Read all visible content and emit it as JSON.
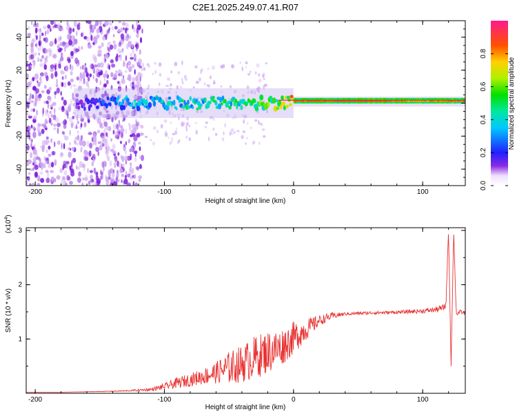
{
  "title": "C2E1.2025.249.07.41.R07",
  "colors": {
    "top_line": "#ff1a1a",
    "snr_line": "#e83030",
    "scatter_dense": "#7a1ad8",
    "scatter_light": "#cda6f2"
  },
  "chart_data": [
    {
      "type": "heatmap",
      "name": "spectrogram",
      "xlabel": "Height of straight line (km)",
      "ylabel": "Frequency (Hz)",
      "xlim": [
        -207,
        133
      ],
      "ylim": [
        -50,
        50
      ],
      "xticks": [
        -200,
        -100,
        0,
        100
      ],
      "xtick_labels": [
        "-200",
        "-100",
        "0",
        "100"
      ],
      "yticks": [
        -40,
        -20,
        0,
        20,
        40
      ],
      "ytick_labels": [
        "-40",
        "-20",
        "0",
        "20",
        "40"
      ],
      "colorbar": {
        "label": "Normalized spectral amplitude",
        "range": [
          0,
          1
        ],
        "ticks": [
          0.0,
          0.2,
          0.4,
          0.6,
          0.8
        ],
        "tick_labels": [
          "0.0",
          "0.2",
          "0.4",
          "0.6",
          "0.8"
        ]
      },
      "ridge": [
        {
          "x": -160,
          "freq": 0,
          "amp": 0.2
        },
        {
          "x": -120,
          "freq": 0,
          "amp": 0.4
        },
        {
          "x": -80,
          "freq": 0,
          "amp": 0.45
        },
        {
          "x": -40,
          "freq": 0,
          "amp": 0.5
        },
        {
          "x": -10,
          "freq": 0,
          "amp": 0.7
        },
        {
          "x": 0,
          "freq": 1,
          "amp": 0.9
        },
        {
          "x": 60,
          "freq": 1,
          "amp": 1.0
        },
        {
          "x": 90,
          "freq": 1,
          "amp": 0.85
        },
        {
          "x": 120,
          "freq": 1,
          "amp": 0.9
        },
        {
          "x": 133,
          "freq": 1,
          "amp": 0.9
        }
      ]
    },
    {
      "type": "line",
      "name": "snr",
      "xlabel": "Height of straight line (km)",
      "ylabel": "SNR (10 * v/v)",
      "yscale_label": "(x10",
      "yscale_exp": "4",
      "yscale_close": ")",
      "xlim": [
        -207,
        133
      ],
      "ylim": [
        0,
        3.05
      ],
      "xticks": [
        -200,
        -100,
        0,
        100
      ],
      "xtick_labels": [
        "-200",
        "-100",
        "0",
        "100"
      ],
      "yticks": [
        1,
        2,
        3
      ],
      "ytick_labels": [
        "1",
        "2",
        "3"
      ],
      "series": [
        {
          "name": "SNR",
          "x": [
            -207,
            -180,
            -150,
            -130,
            -110,
            -100,
            -90,
            -80,
            -70,
            -60,
            -50,
            -40,
            -30,
            -20,
            -10,
            0,
            10,
            20,
            30,
            40,
            60,
            80,
            100,
            110,
            116,
            118,
            120,
            122,
            124,
            126,
            130,
            133
          ],
          "y": [
            0.02,
            0.02,
            0.03,
            0.04,
            0.06,
            0.1,
            0.15,
            0.2,
            0.25,
            0.3,
            0.35,
            0.4,
            0.5,
            0.6,
            0.7,
            0.9,
            1.1,
            1.3,
            1.4,
            1.45,
            1.47,
            1.48,
            1.5,
            1.52,
            1.55,
            1.6,
            3.0,
            0.5,
            3.0,
            1.45,
            1.48,
            1.45
          ],
          "noise": [
            0,
            0,
            0.005,
            0.01,
            0.03,
            0.06,
            0.1,
            0.12,
            0.15,
            0.2,
            0.3,
            0.35,
            0.4,
            0.4,
            0.35,
            0.3,
            0.2,
            0.1,
            0.06,
            0.03,
            0.03,
            0.03,
            0.04,
            0.05,
            0.06,
            0.06,
            0.0,
            0.0,
            0.0,
            0.05,
            0.04,
            0.03
          ]
        }
      ]
    }
  ]
}
